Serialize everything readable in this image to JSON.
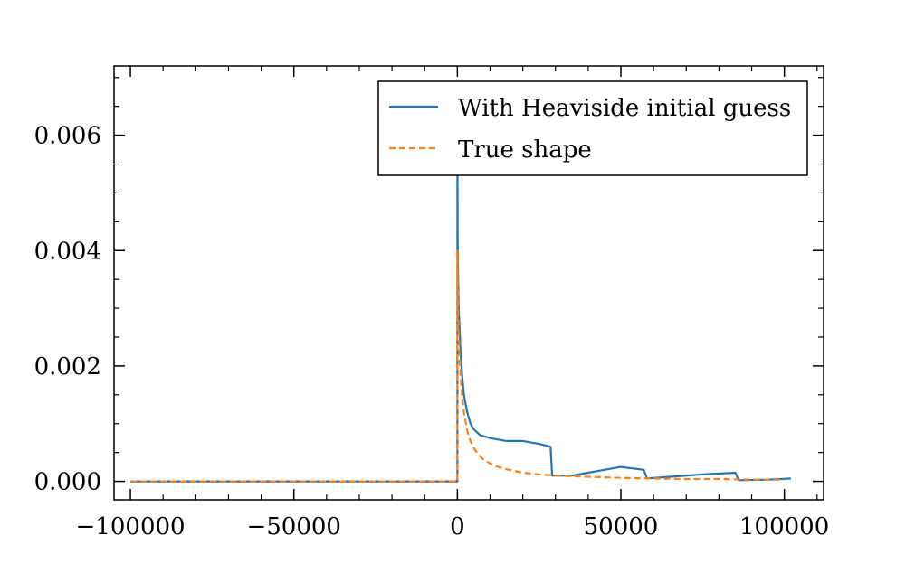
{
  "chart_data": {
    "type": "line",
    "title": "",
    "xlabel": "",
    "ylabel": "",
    "xlim": [
      -105000,
      112000
    ],
    "ylim": [
      -0.00032,
      0.0072
    ],
    "x_ticks": [
      -100000,
      -50000,
      0,
      50000,
      100000
    ],
    "x_tick_labels": [
      "−100000",
      "−50000",
      "0",
      "50000",
      "100000"
    ],
    "y_ticks": [
      0.0,
      0.002,
      0.004,
      0.006
    ],
    "y_tick_labels": [
      "0.000",
      "0.002",
      "0.004",
      "0.006"
    ],
    "legend_position": "top-right",
    "grid": false,
    "series": [
      {
        "name": "With Heaviside initial guess",
        "color": "#1f77b4",
        "style": "solid",
        "x": [
          -100000,
          -1000,
          -100,
          0,
          0,
          100,
          200,
          400,
          700,
          1000,
          1500,
          2000,
          3000,
          4000,
          5000,
          7000,
          10000,
          15000,
          20000,
          25000,
          28500,
          29000,
          35000,
          40000,
          45000,
          50000,
          57000,
          58000,
          65000,
          75000,
          85000,
          86000,
          95000,
          102000
        ],
        "y": [
          0.0,
          0.0,
          0.0,
          0.0,
          0.0058,
          0.0042,
          0.0036,
          0.003,
          0.0026,
          0.0022,
          0.0018,
          0.0015,
          0.0012,
          0.001,
          0.0009,
          0.0008,
          0.00075,
          0.0007,
          0.0007,
          0.00065,
          0.0006,
          0.0001,
          0.0001,
          0.00015,
          0.0002,
          0.00025,
          0.0002,
          5e-05,
          8e-05,
          0.00012,
          0.00015,
          2e-05,
          3e-05,
          5e-05
        ]
      },
      {
        "name": "True shape",
        "color": "#ff7f0e",
        "style": "dashed",
        "x": [
          -100000,
          -500,
          0,
          0,
          300,
          700,
          1000,
          1500,
          2000,
          3000,
          4000,
          5000,
          6000,
          7000,
          8000,
          10000,
          12000,
          15000,
          20000,
          25000,
          30000,
          40000,
          50000,
          60000,
          70000,
          80000,
          90000,
          100000
        ],
        "y": [
          0.0,
          0.0,
          0.0,
          0.004,
          0.0028,
          0.0021,
          0.0018,
          0.00145,
          0.0012,
          0.00088,
          0.0007,
          0.00058,
          0.0005,
          0.00043,
          0.00038,
          0.00031,
          0.00026,
          0.00021,
          0.00015,
          0.00012,
          0.0001,
          8e-05,
          6e-05,
          5e-05,
          4e-05,
          4e-05,
          3e-05,
          3e-05
        ]
      }
    ]
  }
}
